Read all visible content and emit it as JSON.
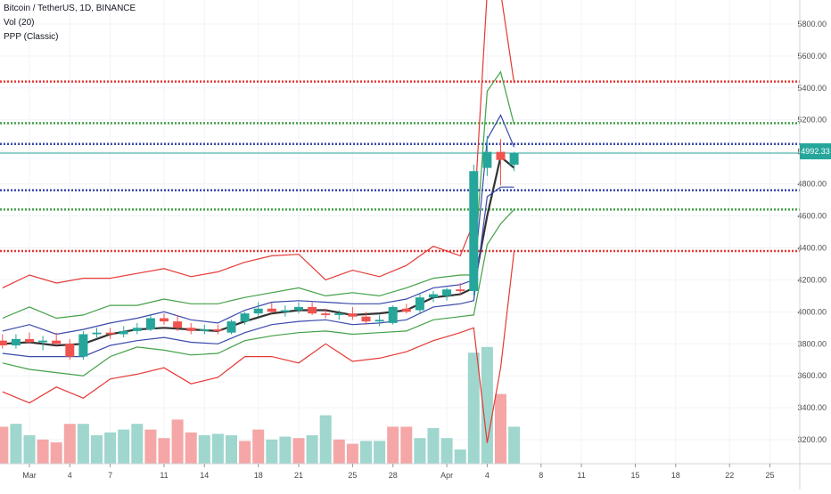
{
  "legend": {
    "symbol": "Bitcoin / TetherUS, 1D, BINANCE",
    "volume": "Vol (20)",
    "pivots": "PPP (Classic)"
  },
  "current_price_label": "4992.33",
  "colors": {
    "up": "#26a69a",
    "down": "#ef5350",
    "vol_up": "#9fd6cd",
    "vol_down": "#f4a7a6",
    "pivot_r": "#e53935",
    "pivot_g": "#43a047",
    "pivot_b": "#3949ab",
    "mid": "#333333",
    "grid": "#f0f3fa",
    "axis_text": "#4a4a4a"
  },
  "chart_data": {
    "type": "candlestick",
    "ylim": [
      3050,
      5950
    ],
    "y_ticks": [
      "3200.00",
      "3400.00",
      "3600.00",
      "3800.00",
      "4000.00",
      "4200.00",
      "4400.00",
      "4600.00",
      "4800.00",
      "5000.00",
      "5200.00",
      "5400.00",
      "5600.00",
      "5800.00"
    ],
    "x_ticks": [
      {
        "label": "Mar",
        "day": 0
      },
      {
        "label": "4",
        "day": 3
      },
      {
        "label": "7",
        "day": 6
      },
      {
        "label": "11",
        "day": 10
      },
      {
        "label": "14",
        "day": 13
      },
      {
        "label": "18",
        "day": 17
      },
      {
        "label": "21",
        "day": 20
      },
      {
        "label": "25",
        "day": 24
      },
      {
        "label": "28",
        "day": 27
      },
      {
        "label": "Apr",
        "day": 31
      },
      {
        "label": "4",
        "day": 34
      },
      {
        "label": "8",
        "day": 38
      },
      {
        "label": "11",
        "day": 41
      },
      {
        "label": "15",
        "day": 45
      },
      {
        "label": "18",
        "day": 48
      },
      {
        "label": "22",
        "day": 52
      },
      {
        "label": "25",
        "day": 55
      }
    ],
    "candles": [
      {
        "day": -2,
        "o": 3820,
        "h": 3860,
        "l": 3770,
        "c": 3790
      },
      {
        "day": -1,
        "o": 3790,
        "h": 3860,
        "l": 3770,
        "c": 3830
      },
      {
        "day": 0,
        "o": 3830,
        "h": 3870,
        "l": 3800,
        "c": 3810
      },
      {
        "day": 1,
        "o": 3810,
        "h": 3850,
        "l": 3760,
        "c": 3820
      },
      {
        "day": 2,
        "o": 3820,
        "h": 3870,
        "l": 3790,
        "c": 3800
      },
      {
        "day": 3,
        "o": 3800,
        "h": 3830,
        "l": 3700,
        "c": 3720
      },
      {
        "day": 4,
        "o": 3720,
        "h": 3880,
        "l": 3700,
        "c": 3860
      },
      {
        "day": 5,
        "o": 3860,
        "h": 3900,
        "l": 3840,
        "c": 3870
      },
      {
        "day": 6,
        "o": 3870,
        "h": 3900,
        "l": 3830,
        "c": 3860
      },
      {
        "day": 7,
        "o": 3860,
        "h": 3910,
        "l": 3840,
        "c": 3880
      },
      {
        "day": 8,
        "o": 3880,
        "h": 3930,
        "l": 3860,
        "c": 3900
      },
      {
        "day": 9,
        "o": 3890,
        "h": 3980,
        "l": 3880,
        "c": 3960
      },
      {
        "day": 10,
        "o": 3960,
        "h": 3990,
        "l": 3920,
        "c": 3940
      },
      {
        "day": 11,
        "o": 3940,
        "h": 3980,
        "l": 3880,
        "c": 3900
      },
      {
        "day": 12,
        "o": 3900,
        "h": 3930,
        "l": 3860,
        "c": 3880
      },
      {
        "day": 13,
        "o": 3880,
        "h": 3920,
        "l": 3860,
        "c": 3890
      },
      {
        "day": 14,
        "o": 3890,
        "h": 3920,
        "l": 3860,
        "c": 3880
      },
      {
        "day": 15,
        "o": 3870,
        "h": 3950,
        "l": 3860,
        "c": 3940
      },
      {
        "day": 16,
        "o": 3940,
        "h": 4000,
        "l": 3920,
        "c": 3990
      },
      {
        "day": 17,
        "o": 3990,
        "h": 4060,
        "l": 3970,
        "c": 4020
      },
      {
        "day": 18,
        "o": 4020,
        "h": 4060,
        "l": 3990,
        "c": 4000
      },
      {
        "day": 19,
        "o": 4000,
        "h": 4040,
        "l": 3970,
        "c": 4010
      },
      {
        "day": 20,
        "o": 4010,
        "h": 4060,
        "l": 3990,
        "c": 4030
      },
      {
        "day": 21,
        "o": 4030,
        "h": 4060,
        "l": 3980,
        "c": 3990
      },
      {
        "day": 22,
        "o": 3990,
        "h": 4020,
        "l": 3960,
        "c": 3980
      },
      {
        "day": 23,
        "o": 3980,
        "h": 4010,
        "l": 3950,
        "c": 3990
      },
      {
        "day": 24,
        "o": 3990,
        "h": 4030,
        "l": 3950,
        "c": 3970
      },
      {
        "day": 25,
        "o": 3970,
        "h": 4000,
        "l": 3920,
        "c": 3940
      },
      {
        "day": 26,
        "o": 3940,
        "h": 3980,
        "l": 3910,
        "c": 3950
      },
      {
        "day": 27,
        "o": 3930,
        "h": 4040,
        "l": 3920,
        "c": 4030
      },
      {
        "day": 28,
        "o": 4020,
        "h": 4050,
        "l": 3990,
        "c": 4000
      },
      {
        "day": 29,
        "o": 4010,
        "h": 4110,
        "l": 3990,
        "c": 4090
      },
      {
        "day": 30,
        "o": 4090,
        "h": 4130,
        "l": 4060,
        "c": 4110
      },
      {
        "day": 31,
        "o": 4100,
        "h": 4150,
        "l": 4070,
        "c": 4140
      },
      {
        "day": 32,
        "o": 4140,
        "h": 4180,
        "l": 4110,
        "c": 4130
      },
      {
        "day": 33,
        "o": 4130,
        "h": 4920,
        "l": 4100,
        "c": 4880
      },
      {
        "day": 34,
        "o": 4900,
        "h": 5100,
        "l": 4850,
        "c": 5000
      },
      {
        "day": 35,
        "o": 5000,
        "h": 5080,
        "l": 4790,
        "c": 4950
      },
      {
        "day": 36,
        "o": 4920,
        "h": 5000,
        "l": 4880,
        "c": 4992
      }
    ],
    "volume_bars": [
      {
        "day": -2,
        "up": false,
        "v": 1.3
      },
      {
        "day": -1,
        "up": true,
        "v": 1.4
      },
      {
        "day": 0,
        "up": true,
        "v": 1.0
      },
      {
        "day": 1,
        "up": false,
        "v": 0.85
      },
      {
        "day": 2,
        "up": false,
        "v": 0.75
      },
      {
        "day": 3,
        "up": false,
        "v": 1.4
      },
      {
        "day": 4,
        "up": true,
        "v": 1.4
      },
      {
        "day": 5,
        "up": true,
        "v": 1.0
      },
      {
        "day": 6,
        "up": true,
        "v": 1.1
      },
      {
        "day": 7,
        "up": true,
        "v": 1.2
      },
      {
        "day": 8,
        "up": true,
        "v": 1.4
      },
      {
        "day": 9,
        "up": false,
        "v": 1.2
      },
      {
        "day": 10,
        "up": false,
        "v": 0.9
      },
      {
        "day": 11,
        "up": false,
        "v": 1.55
      },
      {
        "day": 12,
        "up": false,
        "v": 1.1
      },
      {
        "day": 13,
        "up": true,
        "v": 1.0
      },
      {
        "day": 14,
        "up": true,
        "v": 1.05
      },
      {
        "day": 15,
        "up": true,
        "v": 1.0
      },
      {
        "day": 16,
        "up": false,
        "v": 0.8
      },
      {
        "day": 17,
        "up": false,
        "v": 1.2
      },
      {
        "day": 18,
        "up": true,
        "v": 0.85
      },
      {
        "day": 19,
        "up": true,
        "v": 0.95
      },
      {
        "day": 20,
        "up": false,
        "v": 0.9
      },
      {
        "day": 21,
        "up": true,
        "v": 1.0
      },
      {
        "day": 22,
        "up": true,
        "v": 1.7
      },
      {
        "day": 23,
        "up": false,
        "v": 0.85
      },
      {
        "day": 24,
        "up": false,
        "v": 0.7
      },
      {
        "day": 25,
        "up": true,
        "v": 0.8
      },
      {
        "day": 26,
        "up": true,
        "v": 0.8
      },
      {
        "day": 27,
        "up": false,
        "v": 1.3
      },
      {
        "day": 28,
        "up": false,
        "v": 1.3
      },
      {
        "day": 29,
        "up": true,
        "v": 0.9
      },
      {
        "day": 30,
        "up": true,
        "v": 1.25
      },
      {
        "day": 31,
        "up": true,
        "v": 0.9
      },
      {
        "day": 32,
        "up": true,
        "v": 0.5
      },
      {
        "day": 33,
        "up": true,
        "v": 3.9
      },
      {
        "day": 34,
        "up": true,
        "v": 4.1
      },
      {
        "day": 35,
        "up": false,
        "v": 2.45
      },
      {
        "day": 36,
        "up": true,
        "v": 1.3
      }
    ],
    "pivot_bands": [
      {
        "key": "mid",
        "days": [
          -2,
          0,
          2,
          4,
          6,
          8,
          10,
          12,
          14,
          16,
          18,
          20,
          22,
          24,
          26,
          28,
          30,
          32,
          33,
          34,
          35,
          36
        ],
        "values": [
          3800,
          3810,
          3790,
          3800,
          3860,
          3890,
          3900,
          3890,
          3880,
          3940,
          3990,
          4010,
          4010,
          3980,
          3990,
          4010,
          4090,
          4110,
          4150,
          4600,
          4970,
          4900
        ]
      },
      {
        "key": "b_up",
        "days": [
          -2,
          0,
          2,
          4,
          6,
          8,
          10,
          12,
          14,
          16,
          18,
          20,
          22,
          24,
          26,
          28,
          30,
          32,
          33,
          34,
          35,
          36
        ],
        "values": [
          3880,
          3920,
          3860,
          3890,
          3930,
          3960,
          4000,
          3950,
          3930,
          4010,
          4060,
          4070,
          4060,
          4050,
          4050,
          4080,
          4150,
          4170,
          4200,
          5080,
          5230,
          5030
        ]
      },
      {
        "key": "b_dn",
        "days": [
          -2,
          0,
          2,
          4,
          6,
          8,
          10,
          12,
          14,
          16,
          18,
          20,
          22,
          24,
          26,
          28,
          30,
          32,
          33,
          34,
          35,
          36
        ],
        "values": [
          3740,
          3720,
          3720,
          3720,
          3790,
          3820,
          3840,
          3810,
          3800,
          3870,
          3920,
          3940,
          3950,
          3920,
          3930,
          3950,
          4030,
          4050,
          4070,
          4720,
          4780,
          4780
        ]
      },
      {
        "key": "g_up",
        "days": [
          -2,
          0,
          2,
          4,
          6,
          8,
          10,
          12,
          14,
          16,
          18,
          20,
          22,
          24,
          26,
          28,
          30,
          32,
          33,
          34,
          35,
          36
        ],
        "values": [
          3960,
          4030,
          3960,
          3980,
          4040,
          4040,
          4080,
          4050,
          4050,
          4090,
          4120,
          4150,
          4100,
          4120,
          4100,
          4150,
          4210,
          4230,
          4230,
          5380,
          5500,
          5170
        ]
      },
      {
        "key": "g_dn",
        "days": [
          -2,
          0,
          2,
          4,
          6,
          8,
          10,
          12,
          14,
          16,
          18,
          20,
          22,
          24,
          26,
          28,
          30,
          32,
          33,
          34,
          35,
          36
        ],
        "values": [
          3680,
          3640,
          3620,
          3600,
          3720,
          3780,
          3760,
          3730,
          3740,
          3820,
          3850,
          3870,
          3880,
          3860,
          3870,
          3880,
          3950,
          3970,
          3980,
          4420,
          4550,
          4640
        ]
      },
      {
        "key": "r_up",
        "days": [
          -2,
          0,
          2,
          4,
          6,
          8,
          10,
          12,
          14,
          16,
          18,
          20,
          22,
          24,
          26,
          28,
          30,
          32,
          33,
          34,
          35,
          36
        ],
        "values": [
          4150,
          4230,
          4180,
          4210,
          4210,
          4240,
          4270,
          4220,
          4250,
          4310,
          4350,
          4360,
          4200,
          4260,
          4220,
          4290,
          4410,
          4350,
          4560,
          6000,
          6000,
          5430
        ]
      },
      {
        "key": "r_dn",
        "days": [
          -2,
          0,
          2,
          4,
          6,
          8,
          10,
          12,
          14,
          16,
          18,
          20,
          22,
          24,
          26,
          28,
          30,
          32,
          33,
          34,
          35,
          36
        ],
        "values": [
          3500,
          3430,
          3530,
          3460,
          3580,
          3610,
          3650,
          3550,
          3590,
          3720,
          3720,
          3680,
          3800,
          3690,
          3710,
          3750,
          3820,
          3870,
          3900,
          3180,
          3650,
          4380
        ]
      }
    ],
    "pivot_levels": [
      {
        "key": "r",
        "value": 5440
      },
      {
        "key": "g",
        "value": 5180
      },
      {
        "key": "b",
        "value": 5050
      },
      {
        "key": "b",
        "value": 4760
      },
      {
        "key": "g",
        "value": 4640
      },
      {
        "key": "r",
        "value": 4380
      }
    ],
    "current_price": 4992.33
  }
}
